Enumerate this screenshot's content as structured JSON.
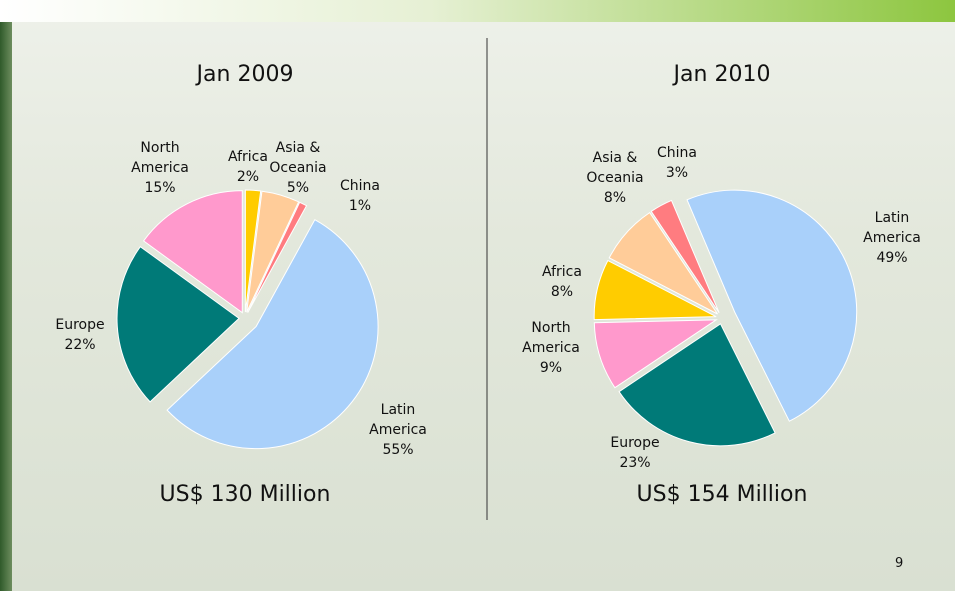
{
  "chart_data": [
    {
      "type": "pie",
      "title": "Jan 2009",
      "subtitle": "US$ 130 Million",
      "categories": [
        "Africa",
        "Asia & Oceania",
        "China",
        "Latin America",
        "Europe",
        "North America"
      ],
      "values": [
        2,
        5,
        1,
        55,
        22,
        15
      ],
      "value_labels": [
        "2%",
        "5%",
        "1%",
        "55%",
        "22%",
        "15%"
      ],
      "colors": [
        "#ffcc00",
        "#ffcc99",
        "#ff7c80",
        "#a9d0fa",
        "#007a78",
        "#ff99cc"
      ]
    },
    {
      "type": "pie",
      "title": "Jan 2010",
      "subtitle": "US$ 154 Million",
      "categories": [
        "Latin America",
        "Europe",
        "North America",
        "Africa",
        "Asia & Oceania",
        "China"
      ],
      "values": [
        49,
        23,
        9,
        8,
        8,
        3
      ],
      "value_labels": [
        "49%",
        "23%",
        "9%",
        "8%",
        "8%",
        "3%"
      ],
      "colors": [
        "#a9d0fa",
        "#007a78",
        "#ff99cc",
        "#ffcc00",
        "#ffcc99",
        "#ff7c80"
      ]
    }
  ],
  "page_number": "9"
}
